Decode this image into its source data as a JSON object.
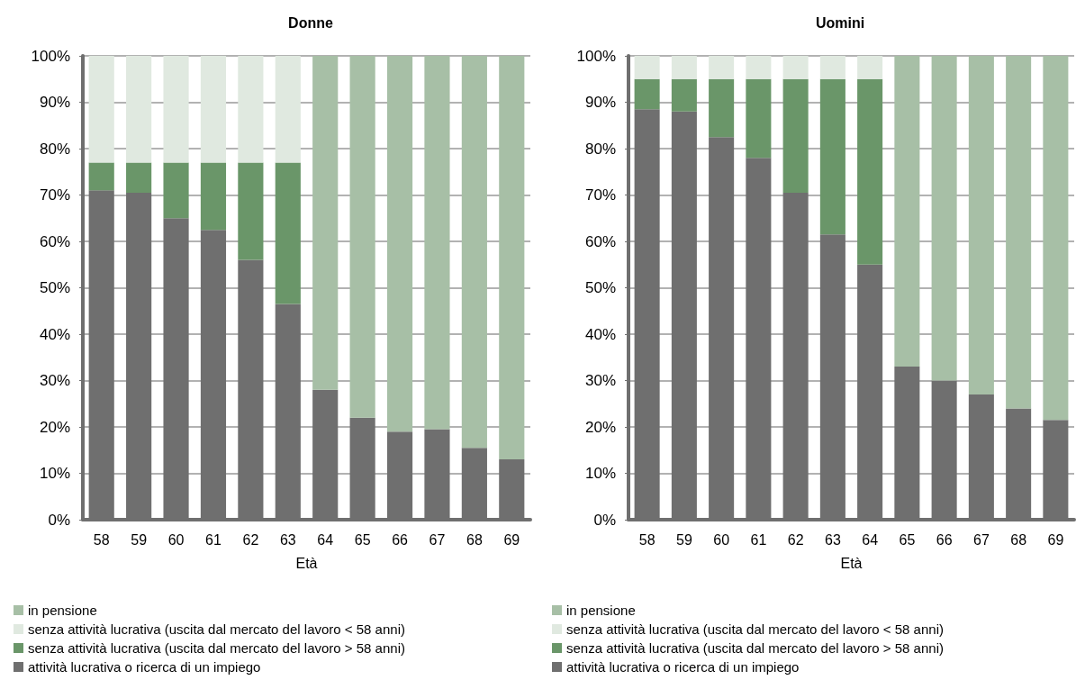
{
  "chart_data": [
    {
      "type": "bar",
      "title": "Donne",
      "xlabel": "Età",
      "stacked": true,
      "categories": [
        "58",
        "59",
        "60",
        "61",
        "62",
        "63",
        "64",
        "65",
        "66",
        "67",
        "68",
        "69"
      ],
      "ylim": [
        0,
        100
      ],
      "yticks": [
        {
          "value": 0,
          "label": "0%"
        },
        {
          "value": 10,
          "label": "10%"
        },
        {
          "value": 20,
          "label": "20%"
        },
        {
          "value": 30,
          "label": "30%"
        },
        {
          "value": 40,
          "label": "40%"
        },
        {
          "value": 50,
          "label": "50%"
        },
        {
          "value": 60,
          "label": "60%"
        },
        {
          "value": 70,
          "label": "70%"
        },
        {
          "value": 80,
          "label": "80%"
        },
        {
          "value": 90,
          "label": "90%"
        },
        {
          "value": 100,
          "label": "100%"
        }
      ],
      "grid": "y",
      "legend": "bottom",
      "series": [
        {
          "name": "attività lucrativa o ricerca di un impiego",
          "color": "#6f6f6f",
          "values": [
            71,
            70.5,
            65,
            62.5,
            56,
            46.5,
            28,
            22,
            19,
            19.5,
            15.5,
            13
          ]
        },
        {
          "name": "senza attività lucrativa (uscita dal mercato del lavoro > 58 anni)",
          "color": "#6a9669",
          "values": [
            6,
            6.5,
            12,
            14.5,
            21,
            30.5,
            null,
            null,
            null,
            null,
            null,
            null
          ]
        },
        {
          "name": "senza attività lucrativa (uscita dal mercato del lavoro < 58 anni)",
          "color": "#e0e9e0",
          "values": [
            23,
            23,
            23,
            23,
            23,
            23,
            null,
            null,
            null,
            null,
            null,
            null
          ]
        },
        {
          "name": "in pensione",
          "color": "#a7bfa6",
          "values": [
            null,
            null,
            null,
            null,
            null,
            null,
            72,
            78,
            81,
            80.5,
            84.5,
            87
          ]
        }
      ]
    },
    {
      "type": "bar",
      "title": "Uomini",
      "xlabel": "Età",
      "stacked": true,
      "categories": [
        "58",
        "59",
        "60",
        "61",
        "62",
        "63",
        "64",
        "65",
        "66",
        "67",
        "68",
        "69"
      ],
      "ylim": [
        0,
        100
      ],
      "yticks": [
        {
          "value": 0,
          "label": "0%"
        },
        {
          "value": 10,
          "label": "10%"
        },
        {
          "value": 20,
          "label": "20%"
        },
        {
          "value": 30,
          "label": "30%"
        },
        {
          "value": 40,
          "label": "40%"
        },
        {
          "value": 50,
          "label": "50%"
        },
        {
          "value": 60,
          "label": "60%"
        },
        {
          "value": 70,
          "label": "70%"
        },
        {
          "value": 80,
          "label": "80%"
        },
        {
          "value": 90,
          "label": "90%"
        },
        {
          "value": 100,
          "label": "100%"
        }
      ],
      "grid": "y",
      "legend": "bottom",
      "series": [
        {
          "name": "attività lucrativa o ricerca di un impiego",
          "color": "#6f6f6f",
          "values": [
            88.5,
            88,
            82.5,
            78,
            70.5,
            61.5,
            55,
            33,
            30,
            27,
            24,
            21.5
          ]
        },
        {
          "name": "senza attività lucrativa (uscita dal mercato del lavoro > 58 anni)",
          "color": "#6a9669",
          "values": [
            6.5,
            7,
            12.5,
            17,
            24.5,
            33.5,
            40,
            null,
            null,
            null,
            null,
            null
          ]
        },
        {
          "name": "senza attività lucrativa (uscita dal mercato del lavoro < 58 anni)",
          "color": "#e0e9e0",
          "values": [
            5,
            5,
            5,
            5,
            5,
            5,
            5,
            null,
            null,
            null,
            null,
            null
          ]
        },
        {
          "name": "in pensione",
          "color": "#a7bfa6",
          "values": [
            null,
            null,
            null,
            null,
            null,
            null,
            null,
            67,
            70,
            73,
            76,
            78.5
          ]
        }
      ]
    }
  ]
}
